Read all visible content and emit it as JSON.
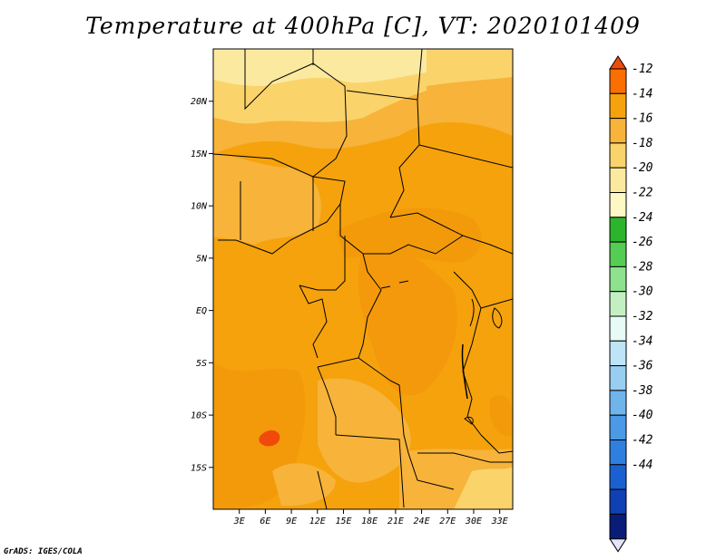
{
  "title": "Temperature at 400hPa [C], VT: 2020101409",
  "credit": "GrADS: IGES/COLA",
  "map": {
    "lon_range": [
      0,
      34.5
    ],
    "lat_range": [
      -19,
      25
    ],
    "lat_ticks": [
      {
        "value": 20,
        "label": "20N"
      },
      {
        "value": 15,
        "label": "15N"
      },
      {
        "value": 10,
        "label": "10N"
      },
      {
        "value": 5,
        "label": "5N"
      },
      {
        "value": 0,
        "label": "EQ"
      },
      {
        "value": -5,
        "label": "5S"
      },
      {
        "value": -10,
        "label": "10S"
      },
      {
        "value": -15,
        "label": "15S"
      }
    ],
    "lon_ticks": [
      {
        "value": 3,
        "label": "3E"
      },
      {
        "value": 6,
        "label": "6E"
      },
      {
        "value": 9,
        "label": "9E"
      },
      {
        "value": 12,
        "label": "12E"
      },
      {
        "value": 15,
        "label": "15E"
      },
      {
        "value": 18,
        "label": "18E"
      },
      {
        "value": 21,
        "label": "21E"
      },
      {
        "value": 24,
        "label": "24E"
      },
      {
        "value": 27,
        "label": "27E"
      },
      {
        "value": 30,
        "label": "30E"
      },
      {
        "value": 33,
        "label": "33E"
      }
    ]
  },
  "colorbar": {
    "labels": [
      "-12",
      "-14",
      "-16",
      "-18",
      "-20",
      "-22",
      "-24",
      "-26",
      "-28",
      "-30",
      "-32",
      "-34",
      "-36",
      "-38",
      "-40",
      "-42",
      "-44"
    ],
    "colors": [
      "#f04a0a",
      "#fa6f00",
      "#f5a20c",
      "#f7b33a",
      "#fad36b",
      "#fbe9a0",
      "#fdf8c4",
      "#2cb42c",
      "#55cd55",
      "#8ee18e",
      "#c3f0c3",
      "#e6fbf5",
      "#bfe3f7",
      "#98cef1",
      "#6fb5ec",
      "#4c99e6",
      "#2f7fde",
      "#1a60d0",
      "#0f40b4",
      "#081c78",
      "#e4e4f8"
    ]
  }
}
